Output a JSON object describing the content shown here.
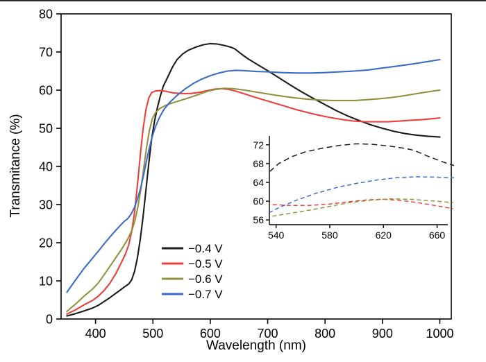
{
  "chart_data": {
    "type": "line",
    "title": "",
    "xlabel": "Wavelength (nm)",
    "ylabel": "Transmitance (%)",
    "xlim": [
      340,
      1020
    ],
    "ylim": [
      0,
      80
    ],
    "xticks": [
      400,
      500,
      600,
      700,
      800,
      900,
      1000
    ],
    "yticks": [
      0,
      10,
      20,
      30,
      40,
      50,
      60,
      70,
      80
    ],
    "grid": false,
    "background": "#ffffff",
    "axis_color": "#000000",
    "legend": {
      "position": "inside-lower-left",
      "entries": [
        "−0.4 V",
        "−0.5 V",
        "−0.6 V",
        "−0.7 V"
      ]
    },
    "series": [
      {
        "name": "−0.4 V",
        "color": "#1a1a1a",
        "dash": "8 5",
        "points": [
          [
            350,
            0.8
          ],
          [
            365,
            1.4
          ],
          [
            380,
            2.1
          ],
          [
            395,
            2.9
          ],
          [
            405,
            3.6
          ],
          [
            415,
            4.6
          ],
          [
            425,
            5.6
          ],
          [
            435,
            6.7
          ],
          [
            445,
            7.8
          ],
          [
            452,
            8.6
          ],
          [
            458,
            9.2
          ],
          [
            463,
            10.3
          ],
          [
            468,
            12.5
          ],
          [
            473,
            16
          ],
          [
            478,
            21
          ],
          [
            483,
            27
          ],
          [
            488,
            34
          ],
          [
            493,
            41
          ],
          [
            498,
            47.5
          ],
          [
            503,
            52
          ],
          [
            508,
            55.5
          ],
          [
            513,
            58.5
          ],
          [
            518,
            61
          ],
          [
            526,
            63.5
          ],
          [
            534,
            66
          ],
          [
            542,
            68
          ],
          [
            552,
            69.5
          ],
          [
            562,
            70.5
          ],
          [
            575,
            71.3
          ],
          [
            588,
            71.9
          ],
          [
            600,
            72.2
          ],
          [
            612,
            72.1
          ],
          [
            625,
            71.7
          ],
          [
            637,
            71.2
          ],
          [
            643,
            70.8
          ],
          [
            652,
            69.7
          ],
          [
            665,
            68.3
          ],
          [
            680,
            66.9
          ],
          [
            700,
            65.1
          ],
          [
            720,
            63.2
          ],
          [
            740,
            61.3
          ],
          [
            760,
            59.5
          ],
          [
            780,
            57.8
          ],
          [
            800,
            56.2
          ],
          [
            820,
            54.6
          ],
          [
            840,
            53.2
          ],
          [
            860,
            52
          ],
          [
            880,
            50.9
          ],
          [
            900,
            50
          ],
          [
            920,
            49.2
          ],
          [
            940,
            48.6
          ],
          [
            960,
            48.2
          ],
          [
            980,
            47.9
          ],
          [
            1000,
            47.7
          ]
        ]
      },
      {
        "name": "−0.5 V",
        "color": "#e8413d",
        "dash": "6 4",
        "points": [
          [
            350,
            1.3
          ],
          [
            365,
            2.4
          ],
          [
            380,
            3.7
          ],
          [
            395,
            4.9
          ],
          [
            405,
            6
          ],
          [
            415,
            7.5
          ],
          [
            425,
            9.4
          ],
          [
            435,
            11.8
          ],
          [
            445,
            14.8
          ],
          [
            452,
            17
          ],
          [
            458,
            19.5
          ],
          [
            463,
            23
          ],
          [
            468,
            28
          ],
          [
            473,
            35
          ],
          [
            478,
            43
          ],
          [
            483,
            50
          ],
          [
            488,
            55
          ],
          [
            493,
            58
          ],
          [
            498,
            59.4
          ],
          [
            505,
            59.8
          ],
          [
            512,
            59.9
          ],
          [
            522,
            59.7
          ],
          [
            535,
            59.3
          ],
          [
            550,
            59.1
          ],
          [
            565,
            59.1
          ],
          [
            580,
            59.4
          ],
          [
            595,
            59.9
          ],
          [
            608,
            60.3
          ],
          [
            620,
            60.4
          ],
          [
            632,
            60.2
          ],
          [
            645,
            59.7
          ],
          [
            658,
            59.1
          ],
          [
            672,
            58.4
          ],
          [
            690,
            57.6
          ],
          [
            710,
            56.7
          ],
          [
            730,
            55.8
          ],
          [
            750,
            54.9
          ],
          [
            770,
            54.1
          ],
          [
            790,
            53.4
          ],
          [
            810,
            52.8
          ],
          [
            830,
            52.3
          ],
          [
            850,
            51.9
          ],
          [
            870,
            51.7
          ],
          [
            890,
            51.7
          ],
          [
            910,
            51.7
          ],
          [
            930,
            51.9
          ],
          [
            950,
            52.1
          ],
          [
            970,
            52.3
          ],
          [
            985,
            52.5
          ],
          [
            1000,
            52.7
          ]
        ]
      },
      {
        "name": "−0.6 V",
        "color": "#91923e",
        "dash": "6 4",
        "points": [
          [
            350,
            2
          ],
          [
            365,
            3.9
          ],
          [
            380,
            6
          ],
          [
            395,
            7.9
          ],
          [
            405,
            9.5
          ],
          [
            415,
            11.6
          ],
          [
            425,
            13.8
          ],
          [
            435,
            16
          ],
          [
            445,
            18.2
          ],
          [
            452,
            19.9
          ],
          [
            458,
            21.5
          ],
          [
            464,
            23.5
          ],
          [
            469,
            26
          ],
          [
            474,
            29.5
          ],
          [
            479,
            34
          ],
          [
            484,
            39.5
          ],
          [
            489,
            45
          ],
          [
            494,
            49.5
          ],
          [
            499,
            52.5
          ],
          [
            505,
            54.2
          ],
          [
            512,
            55.2
          ],
          [
            522,
            56
          ],
          [
            535,
            56.7
          ],
          [
            550,
            57.4
          ],
          [
            565,
            58.1
          ],
          [
            580,
            58.9
          ],
          [
            595,
            59.7
          ],
          [
            610,
            60.2
          ],
          [
            625,
            60.5
          ],
          [
            640,
            60.4
          ],
          [
            655,
            60.1
          ],
          [
            672,
            59.7
          ],
          [
            692,
            59.2
          ],
          [
            712,
            58.7
          ],
          [
            732,
            58.3
          ],
          [
            752,
            57.9
          ],
          [
            772,
            57.6
          ],
          [
            792,
            57.4
          ],
          [
            812,
            57.3
          ],
          [
            832,
            57.3
          ],
          [
            852,
            57.3
          ],
          [
            872,
            57.5
          ],
          [
            892,
            57.7
          ],
          [
            912,
            58
          ],
          [
            932,
            58.4
          ],
          [
            952,
            58.9
          ],
          [
            972,
            59.4
          ],
          [
            986,
            59.7
          ],
          [
            1000,
            60
          ]
        ]
      },
      {
        "name": "−0.7 V",
        "color": "#3b6cc7",
        "dash": "6 4",
        "points": [
          [
            350,
            7
          ],
          [
            365,
            10.2
          ],
          [
            380,
            13.3
          ],
          [
            395,
            16
          ],
          [
            405,
            17.8
          ],
          [
            415,
            19.7
          ],
          [
            425,
            21.5
          ],
          [
            435,
            23.2
          ],
          [
            443,
            24.5
          ],
          [
            450,
            25.6
          ],
          [
            456,
            26.3
          ],
          [
            462,
            27.5
          ],
          [
            468,
            29.3
          ],
          [
            473,
            31.4
          ],
          [
            478,
            34
          ],
          [
            483,
            37.2
          ],
          [
            488,
            40.8
          ],
          [
            493,
            44.3
          ],
          [
            498,
            47.4
          ],
          [
            504,
            50.2
          ],
          [
            511,
            52.7
          ],
          [
            519,
            54.9
          ],
          [
            530,
            56.9
          ],
          [
            542,
            58.6
          ],
          [
            555,
            60.2
          ],
          [
            570,
            61.7
          ],
          [
            585,
            62.9
          ],
          [
            600,
            63.8
          ],
          [
            615,
            64.5
          ],
          [
            630,
            65
          ],
          [
            645,
            65.2
          ],
          [
            660,
            65.1
          ],
          [
            680,
            64.9
          ],
          [
            700,
            64.8
          ],
          [
            725,
            64.6
          ],
          [
            750,
            64.5
          ],
          [
            775,
            64.5
          ],
          [
            800,
            64.6
          ],
          [
            825,
            64.8
          ],
          [
            850,
            65
          ],
          [
            875,
            65.3
          ],
          [
            900,
            65.8
          ],
          [
            925,
            66.3
          ],
          [
            950,
            66.8
          ],
          [
            975,
            67.4
          ],
          [
            1000,
            68
          ]
        ]
      }
    ],
    "inset": {
      "xlim": [
        535,
        668
      ],
      "ylim": [
        55,
        73
      ],
      "xticks": [
        540,
        580,
        620,
        660
      ],
      "yticks": [
        56,
        60,
        64,
        68,
        72
      ],
      "line_style": "dashed"
    }
  }
}
